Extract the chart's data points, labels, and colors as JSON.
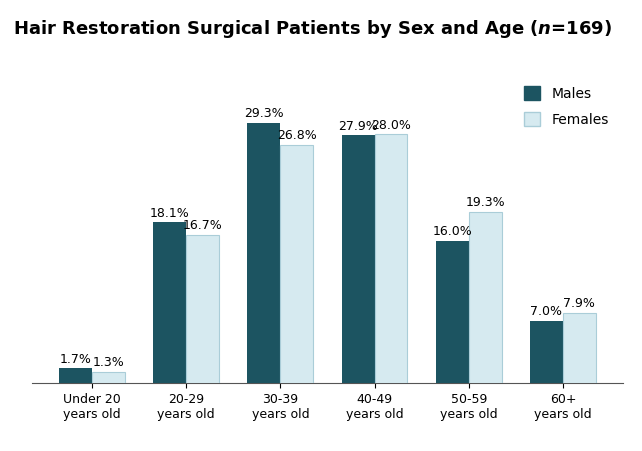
{
  "categories": [
    "Under 20\nyears old",
    "20-29\nyears old",
    "30-39\nyears old",
    "40-49\nyears old",
    "50-59\nyears old",
    "60+\nyears old"
  ],
  "males": [
    1.7,
    18.1,
    29.3,
    27.9,
    16.0,
    7.0
  ],
  "females": [
    1.3,
    16.7,
    26.8,
    28.0,
    19.3,
    7.9
  ],
  "male_color": "#1c5461",
  "female_color": "#d6eaf0",
  "female_edge_color": "#aacdd8",
  "bar_width": 0.35,
  "ylim": [
    0,
    35
  ],
  "legend_males": "Males",
  "legend_females": "Females",
  "label_fontsize": 9,
  "tick_fontsize": 9,
  "title_fontsize": 13,
  "background_color": "#ffffff"
}
